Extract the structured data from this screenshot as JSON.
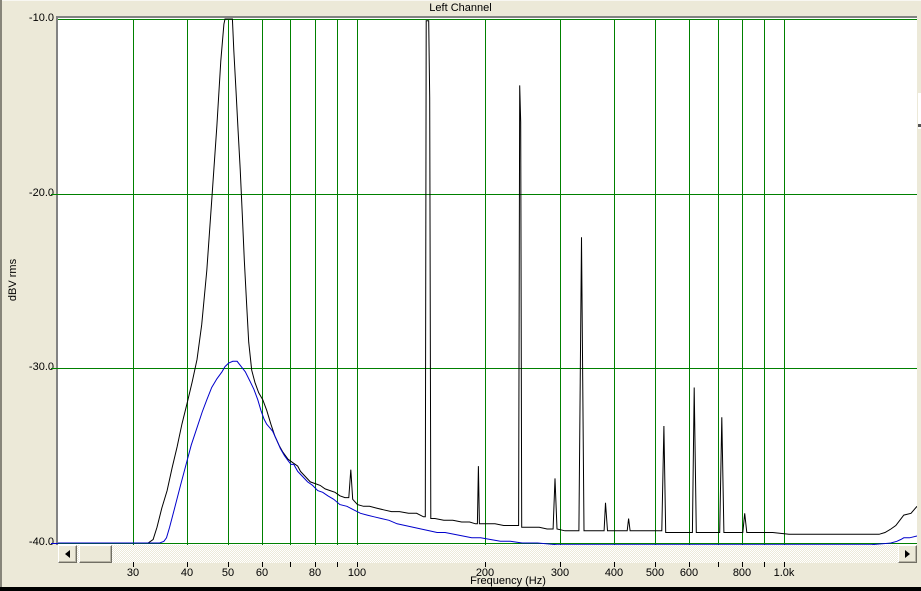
{
  "chart_data": {
    "type": "line",
    "title": "Left Channel",
    "xlabel": "Frequency (Hz)",
    "ylabel": "dBV rms",
    "x_scale": "log",
    "x_range_hz": [
      20,
      2050
    ],
    "y_range_db": [
      -40,
      -10
    ],
    "grid": true,
    "grid_color": "#008000",
    "plot_bg": "#ffffff",
    "y_ticks": [
      "-10.0",
      "-20.0",
      "-30.0",
      "-40.0"
    ],
    "y_tick_values": [
      -10,
      -20,
      -30,
      -40
    ],
    "y_side_ticks": [
      {
        "db": -20,
        "color": "#008000"
      },
      {
        "db": -30,
        "color": "#008000"
      },
      {
        "db": -40,
        "color": "#0000cc"
      }
    ],
    "x_gridlines_hz": [
      30,
      40,
      50,
      60,
      70,
      80,
      90,
      100,
      200,
      300,
      400,
      500,
      600,
      700,
      800,
      900,
      1000
    ],
    "x_tick_labels": [
      {
        "f": 30,
        "label": "30"
      },
      {
        "f": 40,
        "label": "40"
      },
      {
        "f": 50,
        "label": "50"
      },
      {
        "f": 60,
        "label": "60"
      },
      {
        "f": 80,
        "label": "80"
      },
      {
        "f": 100,
        "label": "100"
      },
      {
        "f": 200,
        "label": "200"
      },
      {
        "f": 300,
        "label": "300"
      },
      {
        "f": 400,
        "label": "400"
      },
      {
        "f": 500,
        "label": "500"
      },
      {
        "f": 600,
        "label": "600"
      },
      {
        "f": 800,
        "label": "800"
      },
      {
        "f": 1000,
        "label": "1.0k"
      }
    ],
    "series": [
      {
        "name": "instant-spectrum-black",
        "color": "#000000",
        "points": [
          [
            20,
            -40
          ],
          [
            25.1,
            -40
          ],
          [
            32.5,
            -40
          ],
          [
            33.4,
            -39.8
          ],
          [
            34.1,
            -39.1
          ],
          [
            35,
            -38
          ],
          [
            36,
            -37
          ],
          [
            37,
            -35.7
          ],
          [
            38,
            -34.5
          ],
          [
            39,
            -33.2
          ],
          [
            40.1,
            -32
          ],
          [
            41.2,
            -30.8
          ],
          [
            42.3,
            -29.5
          ],
          [
            43.4,
            -27.5
          ],
          [
            44.6,
            -24.4
          ],
          [
            45.8,
            -20.4
          ],
          [
            47.1,
            -16.1
          ],
          [
            48.1,
            -12.4
          ],
          [
            48.9,
            -10.3
          ],
          [
            49.2,
            -10
          ],
          [
            51.2,
            -10
          ],
          [
            51.6,
            -11.8
          ],
          [
            52.2,
            -14.1
          ],
          [
            52.8,
            -16.4
          ],
          [
            53.4,
            -18.6
          ],
          [
            54,
            -21.2
          ],
          [
            54.6,
            -23.8
          ],
          [
            55.3,
            -26.4
          ],
          [
            55.9,
            -28.5
          ],
          [
            56.8,
            -30.1
          ],
          [
            57.8,
            -30.8
          ],
          [
            59,
            -31.4
          ],
          [
            60.3,
            -31.8
          ],
          [
            61.6,
            -32.4
          ],
          [
            63,
            -33.2
          ],
          [
            64.4,
            -33.9
          ],
          [
            65.8,
            -34.4
          ],
          [
            67.2,
            -34.8
          ],
          [
            69.1,
            -35.2
          ],
          [
            70.9,
            -35.4
          ],
          [
            72.8,
            -35.6
          ],
          [
            73.9,
            -35.9
          ],
          [
            75.9,
            -36.2
          ],
          [
            77.9,
            -36.5
          ],
          [
            80,
            -36.6
          ],
          [
            82.2,
            -36.7
          ],
          [
            84.4,
            -36.9
          ],
          [
            86.7,
            -37
          ],
          [
            89,
            -37.1
          ],
          [
            91.4,
            -37.3
          ],
          [
            93.9,
            -37.4
          ],
          [
            95.9,
            -37.4
          ],
          [
            96.9,
            -35.8
          ],
          [
            97.9,
            -37.5
          ],
          [
            100.5,
            -37.8
          ],
          [
            103.8,
            -37.9
          ],
          [
            107.2,
            -37.9
          ],
          [
            111.3,
            -38
          ],
          [
            115.6,
            -38.1
          ],
          [
            120.7,
            -38.2
          ],
          [
            126,
            -38.2
          ],
          [
            132.3,
            -38.3
          ],
          [
            138.2,
            -38.3
          ],
          [
            143.4,
            -38.5
          ],
          [
            144.8,
            -38.5
          ],
          [
            145.5,
            -10.1
          ],
          [
            147.5,
            -10.1
          ],
          [
            148.3,
            -14.5
          ],
          [
            149.2,
            -38.6
          ],
          [
            152.5,
            -38.6
          ],
          [
            160,
            -38.7
          ],
          [
            167.9,
            -38.7
          ],
          [
            176.1,
            -38.8
          ],
          [
            183.9,
            -38.8
          ],
          [
            189.8,
            -38.9
          ],
          [
            191.8,
            -38.9
          ],
          [
            192.8,
            -35.6
          ],
          [
            193.8,
            -38.9
          ],
          [
            201,
            -38.9
          ],
          [
            210.8,
            -38.9
          ],
          [
            220.9,
            -39
          ],
          [
            230.6,
            -39
          ],
          [
            236.8,
            -39
          ],
          [
            239.5,
            -39
          ],
          [
            240.8,
            -13.8
          ],
          [
            242.2,
            -15.9
          ],
          [
            243.5,
            -39.1
          ],
          [
            255.4,
            -39.1
          ],
          [
            267.6,
            -39.1
          ],
          [
            279.2,
            -39.2
          ],
          [
            288.3,
            -39.2
          ],
          [
            291.4,
            -36.3
          ],
          [
            294.5,
            -39.2
          ],
          [
            307.3,
            -39.3
          ],
          [
            320.8,
            -39.3
          ],
          [
            331.4,
            -39.3
          ],
          [
            336,
            -22.5
          ],
          [
            340.7,
            -39.3
          ],
          [
            355.1,
            -39.3
          ],
          [
            370.5,
            -39.3
          ],
          [
            379.5,
            -39.3
          ],
          [
            382.5,
            -37.7
          ],
          [
            386.6,
            -39.3
          ],
          [
            403.3,
            -39.3
          ],
          [
            420.8,
            -39.3
          ],
          [
            429.9,
            -39.3
          ],
          [
            433.3,
            -38.6
          ],
          [
            436.7,
            -39.3
          ],
          [
            457.4,
            -39.3
          ],
          [
            486.6,
            -39.3
          ],
          [
            512.6,
            -39.3
          ],
          [
            518,
            -39.3
          ],
          [
            524,
            -33.3
          ],
          [
            529,
            -39.4
          ],
          [
            558.6,
            -39.4
          ],
          [
            596.1,
            -39.4
          ],
          [
            611,
            -39.4
          ],
          [
            617,
            -31.1
          ],
          [
            624,
            -39.4
          ],
          [
            659,
            -39.4
          ],
          [
            691.9,
            -39.4
          ],
          [
            708,
            -39.4
          ],
          [
            716,
            -32.8
          ],
          [
            724,
            -39.4
          ],
          [
            756.9,
            -39.4
          ],
          [
            789.4,
            -39.4
          ],
          [
            801.8,
            -39.4
          ],
          [
            810,
            -38.3
          ],
          [
            819,
            -39.4
          ],
          [
            867.7,
            -39.4
          ],
          [
            941.9,
            -39.4
          ],
          [
            1028,
            -39.5
          ],
          [
            1141,
            -39.5
          ],
          [
            1268,
            -39.5
          ],
          [
            1376,
            -39.5
          ],
          [
            1457,
            -39.5
          ],
          [
            1601,
            -39.5
          ],
          [
            1671,
            -39.5
          ],
          [
            1725,
            -39.4
          ],
          [
            1781,
            -39.2
          ],
          [
            1829,
            -39
          ],
          [
            1869,
            -38.7
          ],
          [
            1909,
            -38.4
          ],
          [
            1985,
            -38.3
          ],
          [
            2050,
            -37.9
          ]
        ]
      },
      {
        "name": "averaged-spectrum-blue",
        "color": "#0000cc",
        "points": [
          [
            20,
            -40
          ],
          [
            26.6,
            -40
          ],
          [
            34.6,
            -40
          ],
          [
            35.4,
            -39.9
          ],
          [
            35.9,
            -39.7
          ],
          [
            36.5,
            -39.1
          ],
          [
            37.6,
            -37.9
          ],
          [
            38.7,
            -36.7
          ],
          [
            39.9,
            -35.5
          ],
          [
            41,
            -34.4
          ],
          [
            42.3,
            -33.4
          ],
          [
            43.5,
            -32.5
          ],
          [
            44.6,
            -31.8
          ],
          [
            45.8,
            -31.1
          ],
          [
            47.1,
            -30.6
          ],
          [
            48.4,
            -30.2
          ],
          [
            49.2,
            -29.9
          ],
          [
            50.2,
            -29.7
          ],
          [
            51.3,
            -29.6
          ],
          [
            52.5,
            -29.6
          ],
          [
            53.7,
            -29.9
          ],
          [
            54.9,
            -30.2
          ],
          [
            56.2,
            -30.7
          ],
          [
            57.5,
            -31.2
          ],
          [
            58.7,
            -31.8
          ],
          [
            59.7,
            -32.4
          ],
          [
            60.7,
            -32.9
          ],
          [
            61.6,
            -33.2
          ],
          [
            62.6,
            -33.4
          ],
          [
            63.6,
            -33.6
          ],
          [
            65,
            -34.1
          ],
          [
            66.3,
            -34.6
          ],
          [
            67.8,
            -35
          ],
          [
            69.2,
            -35.3
          ],
          [
            70.2,
            -35.5
          ],
          [
            71.3,
            -35.5
          ],
          [
            72.8,
            -35.9
          ],
          [
            74.8,
            -36.2
          ],
          [
            76.8,
            -36.5
          ],
          [
            78.9,
            -36.7
          ],
          [
            81.1,
            -37
          ],
          [
            83.3,
            -37.1
          ],
          [
            85.6,
            -37.3
          ],
          [
            88.4,
            -37.5
          ],
          [
            91.4,
            -37.8
          ],
          [
            94.9,
            -37.9
          ],
          [
            98.4,
            -38.1
          ],
          [
            102.1,
            -38.3
          ],
          [
            105.9,
            -38.4
          ],
          [
            109.9,
            -38.5
          ],
          [
            114.2,
            -38.6
          ],
          [
            119.1,
            -38.7
          ],
          [
            124.4,
            -38.9
          ],
          [
            129.9,
            -39
          ],
          [
            135.6,
            -39.1
          ],
          [
            141.6,
            -39.2
          ],
          [
            147.9,
            -39.3
          ],
          [
            154.3,
            -39.4
          ],
          [
            161.1,
            -39.4
          ],
          [
            169,
            -39.5
          ],
          [
            177.3,
            -39.6
          ],
          [
            186,
            -39.7
          ],
          [
            195.1,
            -39.7
          ],
          [
            205.8,
            -39.8
          ],
          [
            217.1,
            -39.9
          ],
          [
            229,
            -39.9
          ],
          [
            244.1,
            -40
          ],
          [
            265.2,
            -40
          ],
          [
            294.2,
            -40.1
          ],
          [
            365.4,
            -40.1
          ],
          [
            477.1,
            -40.1
          ],
          [
            622.3,
            -40.1
          ],
          [
            814.8,
            -40.1
          ],
          [
            1067,
            -40.1
          ],
          [
            1396,
            -40.1
          ],
          [
            1601,
            -40.1
          ],
          [
            1781,
            -40
          ],
          [
            1839,
            -39.9
          ],
          [
            1879,
            -39.8
          ],
          [
            1909,
            -39.7
          ],
          [
            1970,
            -39.7
          ],
          [
            2050,
            -39.6
          ]
        ]
      }
    ]
  },
  "scrollbar": {
    "left_arrow_icon": "scroll-left",
    "right_arrow_icon": "scroll-right"
  }
}
